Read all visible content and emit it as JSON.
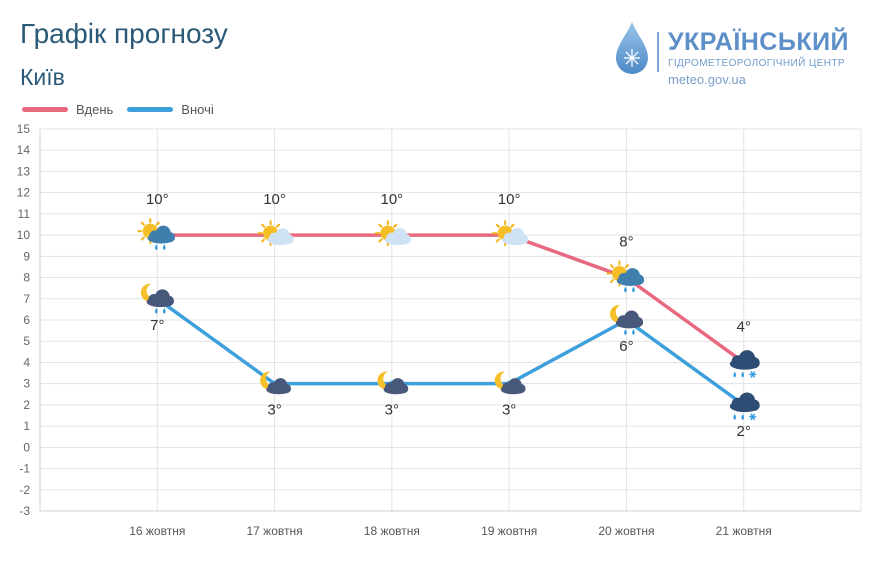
{
  "title": "Графік прогнозу",
  "city": "Київ",
  "logo": {
    "name": "УКРАЇНСЬКИЙ",
    "subtitle": "ГІДРОМЕТЕОРОЛОГІЧНИЙ ЦЕНТР",
    "url": "meteo.gov.ua"
  },
  "colors": {
    "day": "#e8687f",
    "night": "#3d9fdc",
    "grid": "#e3e3e3",
    "text": "#555555"
  },
  "chart_data": {
    "type": "line",
    "categories": [
      "16 жовтня",
      "17 жовтня",
      "18 жовтня",
      "19 жовтня",
      "20 жовтня",
      "21 жовтня"
    ],
    "series": [
      {
        "name": "Вдень",
        "values": [
          10,
          10,
          10,
          10,
          8,
          4
        ],
        "labels": [
          "10°",
          "10°",
          "10°",
          "10°",
          "8°",
          "4°"
        ],
        "icons": [
          "sun-cloud-rain",
          "sun-cloud",
          "sun-cloud",
          "sun-cloud",
          "sun-cloud-rain",
          "cloud-rain-snow"
        ]
      },
      {
        "name": "Вночі",
        "values": [
          7,
          3,
          3,
          3,
          6,
          2
        ],
        "labels": [
          "7°",
          "3°",
          "3°",
          "3°",
          "6°",
          "2°"
        ],
        "icons": [
          "moon-cloud-rain",
          "moon-cloud",
          "moon-cloud",
          "moon-cloud",
          "moon-cloud-rain",
          "cloud-rain-snow"
        ]
      }
    ],
    "yticks": [
      "15",
      "14",
      "13",
      "12",
      "11",
      "10",
      "9",
      "8",
      "7",
      "6",
      "5",
      "4",
      "3",
      "2",
      "1",
      "0",
      "-1",
      "-2",
      "-3"
    ],
    "ylim": [
      -3,
      15
    ],
    "legend": "top-left"
  }
}
